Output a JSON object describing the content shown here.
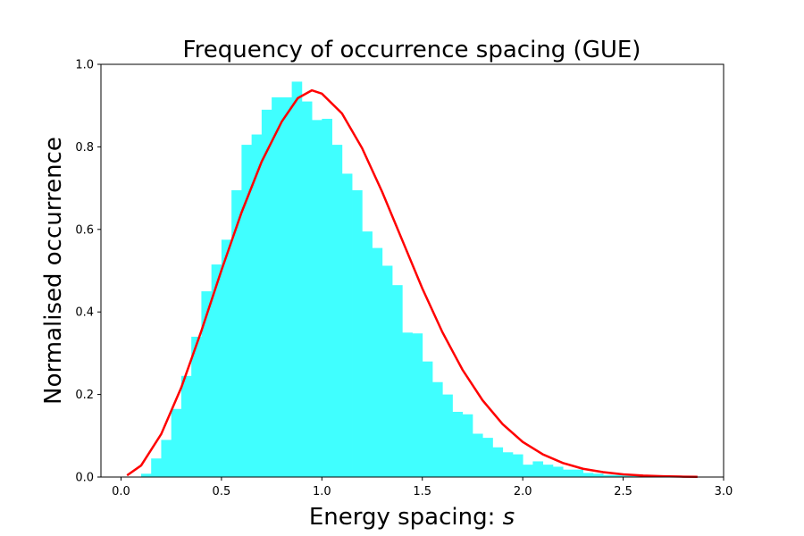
{
  "chart_data": {
    "type": "bar",
    "title": "Frequency of occurrence spacing (GUE)",
    "xlabel_text": "Energy spacing: ",
    "xlabel_var": "s",
    "ylabel": "Normalised occurrence",
    "xlim": [
      -0.1,
      3.0
    ],
    "ylim": [
      0,
      1.0
    ],
    "xticks": [
      "0.0",
      "0.5",
      "1.0",
      "1.5",
      "2.0",
      "2.5",
      "3.0"
    ],
    "yticks": [
      "0.0",
      "0.2",
      "0.4",
      "0.6",
      "0.8",
      "1.0"
    ],
    "grid": false,
    "histogram": {
      "name": "",
      "color": "#40ffff",
      "bin_width": 0.05,
      "bin_start": 0.0,
      "values": [
        0.0,
        0.0,
        0.008,
        0.045,
        0.09,
        0.165,
        0.245,
        0.34,
        0.45,
        0.515,
        0.575,
        0.695,
        0.805,
        0.83,
        0.89,
        0.92,
        0.92,
        0.958,
        0.91,
        0.865,
        0.868,
        0.805,
        0.735,
        0.695,
        0.595,
        0.555,
        0.512,
        0.465,
        0.35,
        0.348,
        0.28,
        0.23,
        0.2,
        0.158,
        0.152,
        0.105,
        0.095,
        0.072,
        0.06,
        0.055,
        0.03,
        0.038,
        0.03,
        0.025,
        0.018,
        0.018,
        0.01,
        0.008,
        0.005,
        0.005,
        0.004,
        0.003,
        0.003,
        0.002,
        0.002,
        0.001,
        0.001,
        0.0
      ]
    },
    "curve": {
      "name": "",
      "color": "#ff0000",
      "x": [
        0.03,
        0.1,
        0.2,
        0.3,
        0.4,
        0.5,
        0.6,
        0.7,
        0.8,
        0.88,
        0.95,
        1.0,
        1.1,
        1.2,
        1.3,
        1.4,
        1.5,
        1.6,
        1.7,
        1.8,
        1.9,
        2.0,
        2.1,
        2.2,
        2.3,
        2.4,
        2.5,
        2.6,
        2.7,
        2.8,
        2.87
      ],
      "y": [
        0.004,
        0.028,
        0.104,
        0.217,
        0.354,
        0.501,
        0.641,
        0.764,
        0.861,
        0.918,
        0.937,
        0.929,
        0.881,
        0.797,
        0.691,
        0.574,
        0.457,
        0.351,
        0.26,
        0.186,
        0.128,
        0.085,
        0.055,
        0.034,
        0.02,
        0.012,
        0.0065,
        0.0035,
        0.0018,
        0.0009,
        0.0006
      ]
    }
  }
}
